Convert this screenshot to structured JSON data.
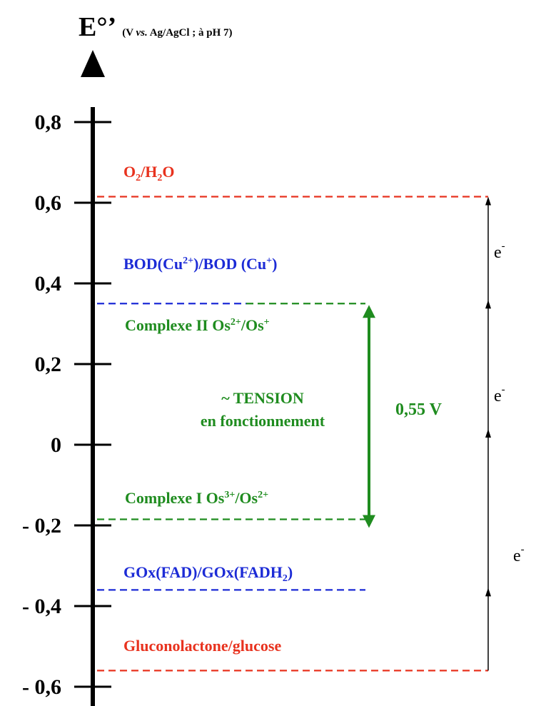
{
  "axis": {
    "symbol": "E°’",
    "conditions_open": "(V ",
    "conditions_vs": "vs.",
    "conditions_rest": " Ag/AgCl ; à pH 7)",
    "ticks": [
      {
        "value": 0.8,
        "label": "0,8"
      },
      {
        "value": 0.6,
        "label": "0,6"
      },
      {
        "value": 0.4,
        "label": "0,4"
      },
      {
        "value": 0.2,
        "label": "0,2"
      },
      {
        "value": 0.0,
        "label": "0"
      },
      {
        "value": -0.2,
        "label": "- 0,2"
      },
      {
        "value": -0.4,
        "label": "- 0,4"
      },
      {
        "value": -0.6,
        "label": "- 0,6"
      }
    ]
  },
  "couples": [
    {
      "id": "o2-h2o",
      "potential": 0.615,
      "color": "#e8321e",
      "parts": [
        [
          "O",
          ""
        ],
        [
          "2",
          "sub"
        ],
        [
          "/H",
          ""
        ],
        [
          "2",
          "sub"
        ],
        [
          "O",
          ""
        ]
      ]
    },
    {
      "id": "bod",
      "potential": 0.35,
      "color": "#1c2bd6",
      "parts": [
        [
          "BOD(Cu",
          ""
        ],
        [
          "2+",
          "sup"
        ],
        [
          ")/BOD (Cu",
          ""
        ],
        [
          "+",
          "sup"
        ],
        [
          ")",
          ""
        ]
      ]
    },
    {
      "id": "complexe-ii",
      "potential": 0.35,
      "color": "#1f8c1f",
      "parts": [
        [
          "Complexe II Os",
          ""
        ],
        [
          "2+",
          "sup"
        ],
        [
          "/Os",
          ""
        ],
        [
          "+",
          "sup"
        ]
      ]
    },
    {
      "id": "complexe-i",
      "potential": -0.185,
      "color": "#1f8c1f",
      "parts": [
        [
          "Complexe I Os",
          ""
        ],
        [
          "3+",
          "sup"
        ],
        [
          "/Os",
          ""
        ],
        [
          "2+",
          "sup"
        ]
      ]
    },
    {
      "id": "gox",
      "potential": -0.36,
      "color": "#1c2bd6",
      "parts": [
        [
          "GOx(FAD)/GOx(FADH",
          ""
        ],
        [
          "2",
          "sub"
        ],
        [
          ")",
          ""
        ]
      ]
    },
    {
      "id": "gluconolactone",
      "potential": -0.56,
      "color": "#e8321e",
      "parts": [
        [
          "Gluconolactone/glucose",
          ""
        ]
      ]
    }
  ],
  "tension": {
    "line1": "~ TENSION",
    "line2": "en fonctionnement",
    "value": "0,55 V",
    "from": -0.185,
    "to": 0.35
  },
  "electron_labels": [
    {
      "text": "e",
      "sup": "-"
    },
    {
      "text": "e",
      "sup": "-"
    },
    {
      "text": "e",
      "sup": "-"
    }
  ]
}
